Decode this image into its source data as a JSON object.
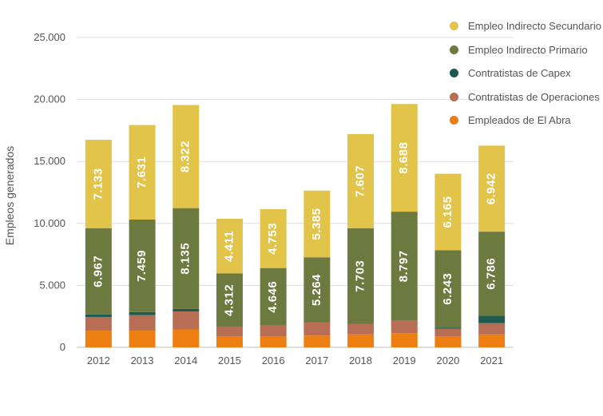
{
  "chart_data": {
    "type": "bar",
    "stacked": true,
    "ylabel": "Empleos generados",
    "xlabel": "",
    "ylim": [
      0,
      25000
    ],
    "yticks": [
      0,
      5000,
      10000,
      15000,
      20000,
      25000
    ],
    "ytick_labels": [
      "0",
      "5.000",
      "10.000",
      "15.000",
      "20.000",
      "25.000"
    ],
    "grid": true,
    "legend_position": "top-right",
    "categories": [
      "2012",
      "2013",
      "2014",
      "2015",
      "2016",
      "2017",
      "2018",
      "2019",
      "2020",
      "2021"
    ],
    "series": [
      {
        "name": "Empleados de El Abra",
        "color": "#ED7F12",
        "values": [
          1350,
          1350,
          1450,
          900,
          900,
          950,
          1050,
          1150,
          900,
          1050
        ]
      },
      {
        "name": "Contratistas de Operaciones",
        "color": "#B86E54",
        "values": [
          1100,
          1250,
          1450,
          750,
          850,
          1050,
          850,
          1000,
          600,
          900
        ]
      },
      {
        "name": "Contratistas de Capex",
        "color": "#1F5A50",
        "values": [
          200,
          250,
          200,
          0,
          0,
          0,
          0,
          0,
          100,
          600
        ]
      },
      {
        "name": "Empleo Indirecto Primario",
        "color": "#6C7A40",
        "values": [
          6967,
          7459,
          8135,
          4312,
          4646,
          5264,
          7703,
          8797,
          6243,
          6786
        ],
        "labels": [
          "6.967",
          "7.459",
          "8.135",
          "4.312",
          "4.646",
          "5.264",
          "7.703",
          "8.797",
          "6.243",
          "6.786"
        ]
      },
      {
        "name": "Empleo Indirecto Secundario",
        "color": "#E2C44A",
        "values": [
          7133,
          7631,
          8322,
          4411,
          4753,
          5385,
          7607,
          8688,
          6165,
          6942
        ],
        "labels": [
          "7.133",
          "7.631",
          "8.322",
          "4.411",
          "4.753",
          "5.385",
          "7.607",
          "8.688",
          "6.165",
          "6.942"
        ]
      }
    ],
    "legend_order": [
      "Empleo Indirecto Secundario",
      "Empleo Indirecto Primario",
      "Contratistas de Capex",
      "Contratistas de Operaciones",
      "Empleados de El Abra"
    ]
  }
}
